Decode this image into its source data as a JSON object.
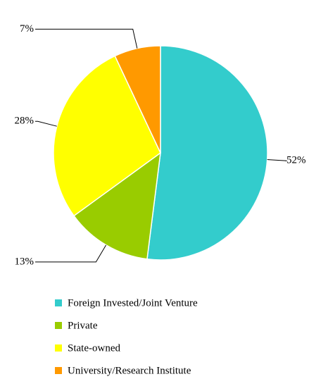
{
  "chart_data": {
    "type": "pie",
    "categories": [
      "Foreign Invested/Joint Venture",
      "Private",
      "State-owned",
      "University/Research Institute"
    ],
    "values": [
      52,
      13,
      28,
      7
    ],
    "value_labels": [
      "52%",
      "13%",
      "28%",
      "7%"
    ],
    "colors": [
      "#33CCCC",
      "#99CC00",
      "#FFFF00",
      "#FF9900"
    ]
  }
}
